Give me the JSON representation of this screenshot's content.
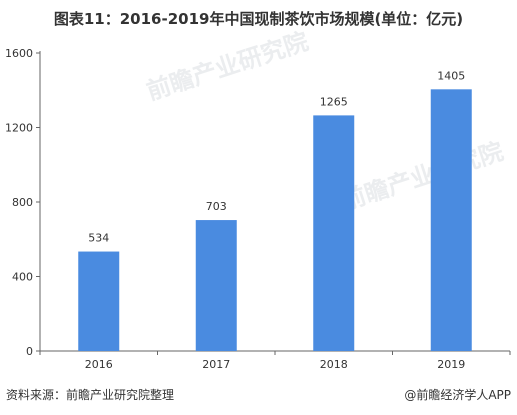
{
  "chart_data": {
    "type": "bar",
    "title": "图表11：2016-2019年中国现制茶饮市场规模(单位：亿元)",
    "categories": [
      "2016",
      "2017",
      "2018",
      "2019"
    ],
    "values": [
      534,
      703,
      1265,
      1405
    ],
    "data_labels": [
      "534",
      "703",
      "1265",
      "1405"
    ],
    "yticks": [
      0,
      400,
      800,
      1200,
      1600
    ],
    "ylim": [
      0,
      1600
    ],
    "xlabel": "",
    "ylabel": "",
    "grid": false,
    "legend": "none",
    "bar_color": "#4a8be0"
  },
  "footer": {
    "source": "资料来源：前瞻产业研究院整理",
    "brand": "@前瞻经济学人APP"
  },
  "watermark": {
    "text": "前瞻产业研究院"
  }
}
